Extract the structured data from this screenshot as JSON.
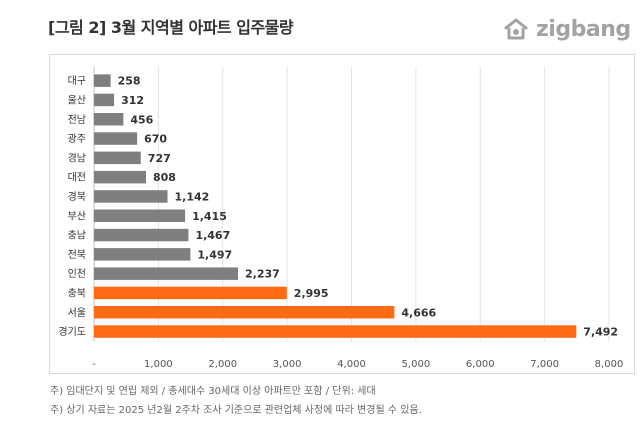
{
  "title": "[그림 2] 3월 지역별 아파트 입주물량",
  "logo": {
    "text": "zigbang",
    "icon": "zigbang-house-logo-icon",
    "color": "#a3a3a3"
  },
  "notes": [
    "주) 임대단지 및 연립 제외 / 총세대수 30세대 이상 아파트만 포함 / 단위: 세대",
    "주) 상기 자료는 2025 년2월 2주차 조사 기준으로 관련업체 사정에 따라 변경될 수 있음."
  ],
  "colors": {
    "normal": "#7f7f7f",
    "highlight": "#ff6a13",
    "grid": "#e3e3e3",
    "text": "#333333"
  },
  "chart_data": {
    "type": "bar",
    "orientation": "horizontal",
    "title": "",
    "xlabel": "",
    "ylabel": "",
    "categories": [
      "대구",
      "울산",
      "전남",
      "광주",
      "경남",
      "대전",
      "경북",
      "부산",
      "충남",
      "전북",
      "인천",
      "충북",
      "서울",
      "경기도"
    ],
    "values": [
      258,
      312,
      456,
      670,
      727,
      808,
      1142,
      1415,
      1467,
      1497,
      2237,
      2995,
      4666,
      7492
    ],
    "value_labels": [
      "258",
      "312",
      "456",
      "670",
      "727",
      "808",
      "1,142",
      "1,415",
      "1,467",
      "1,497",
      "2,237",
      "2,995",
      "4,666",
      "7,492"
    ],
    "highlighted": [
      "충북",
      "서울",
      "경기도"
    ],
    "xlim": [
      0,
      8000
    ],
    "ticks": [
      0,
      1000,
      2000,
      3000,
      4000,
      5000,
      6000,
      7000,
      8000
    ],
    "tick_labels": [
      "-",
      "1,000",
      "2,000",
      "3,000",
      "4,000",
      "5,000",
      "6,000",
      "7,000",
      "8,000"
    ],
    "grid": true,
    "legend": false
  }
}
